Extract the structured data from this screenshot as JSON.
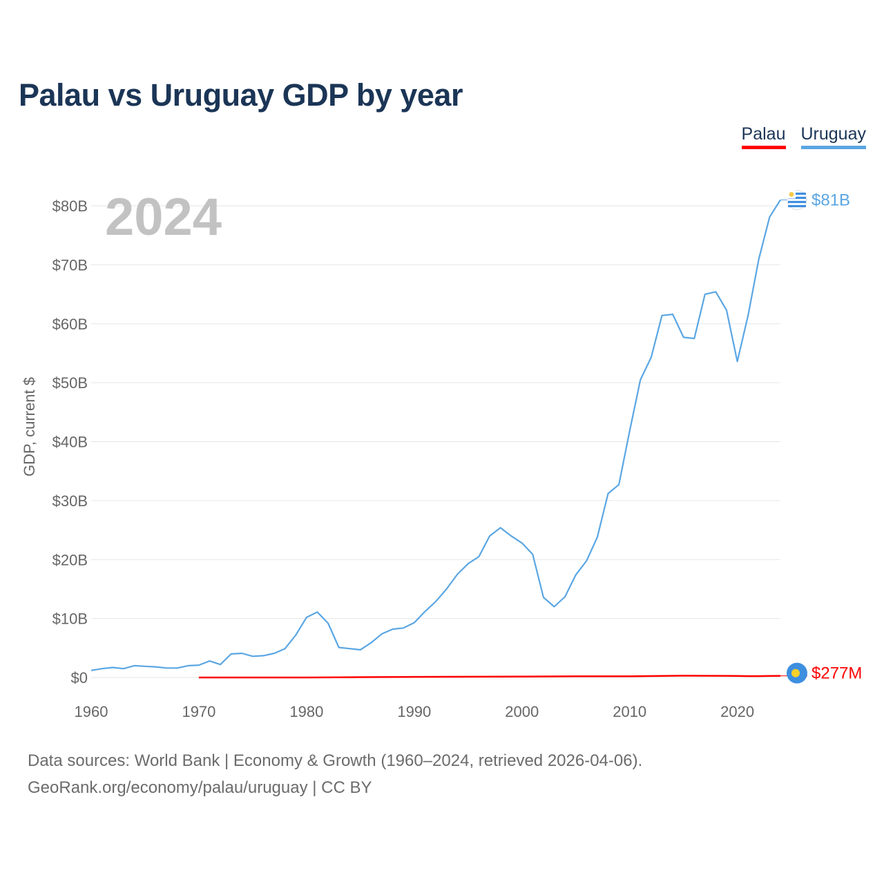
{
  "title": "Palau vs Uruguay GDP by year",
  "legend": [
    {
      "label": "Palau",
      "color": "#ff0000"
    },
    {
      "label": "Uruguay",
      "color": "#5aa6e3"
    }
  ],
  "footer": {
    "line1": "Data sources: World Bank | Economy & Growth (1960–2024, retrieved 2026-04-06).",
    "line2": "GeoRank.org/economy/palau/uruguay | CC BY"
  },
  "chart_data": {
    "type": "line",
    "title": "Palau vs Uruguay GDP by year",
    "xlabel": "",
    "ylabel": "GDP, current $",
    "current_year": "2024",
    "xlim": [
      1960,
      2024
    ],
    "ylim": [
      0,
      80
    ],
    "y_unit": "billions of current US$",
    "x_ticks": [
      "1960",
      "1970",
      "1980",
      "1990",
      "2000",
      "2010",
      "2020"
    ],
    "y_ticks": [
      "$0",
      "$10B",
      "$20B",
      "$30B",
      "$40B",
      "$50B",
      "$60B",
      "$70B",
      "$80B"
    ],
    "y_tick_values": [
      0,
      10,
      20,
      30,
      40,
      50,
      60,
      70,
      80
    ],
    "grid": true,
    "series": [
      {
        "name": "Uruguay",
        "color": "#5aa6e3",
        "end_label": "$81B",
        "x": [
          1960,
          1961,
          1962,
          1963,
          1964,
          1965,
          1966,
          1967,
          1968,
          1969,
          1970,
          1971,
          1972,
          1973,
          1974,
          1975,
          1976,
          1977,
          1978,
          1979,
          1980,
          1981,
          1982,
          1983,
          1984,
          1985,
          1986,
          1987,
          1988,
          1989,
          1990,
          1991,
          1992,
          1993,
          1994,
          1995,
          1996,
          1997,
          1998,
          1999,
          2000,
          2001,
          2002,
          2003,
          2004,
          2005,
          2006,
          2007,
          2008,
          2009,
          2010,
          2011,
          2012,
          2013,
          2014,
          2015,
          2016,
          2017,
          2018,
          2019,
          2020,
          2021,
          2022,
          2023,
          2024
        ],
        "values": [
          1.2,
          1.5,
          1.7,
          1.5,
          2.0,
          1.9,
          1.8,
          1.6,
          1.6,
          2.0,
          2.1,
          2.8,
          2.2,
          4.0,
          4.1,
          3.6,
          3.7,
          4.1,
          4.9,
          7.2,
          10.2,
          11.1,
          9.2,
          5.1,
          4.9,
          4.7,
          5.9,
          7.4,
          8.2,
          8.4,
          9.3,
          11.2,
          12.9,
          15.0,
          17.5,
          19.3,
          20.5,
          24.0,
          25.4,
          24.0,
          22.8,
          20.9,
          13.6,
          12.0,
          13.7,
          17.4,
          19.8,
          23.8,
          31.2,
          32.7,
          41.8,
          50.5,
          54.3,
          61.4,
          61.6,
          57.7,
          57.5,
          65.0,
          65.4,
          62.3,
          53.6,
          61.4,
          71.0,
          78.1,
          81.0
        ]
      },
      {
        "name": "Palau",
        "color": "#ff0000",
        "end_label": "$277M",
        "x": [
          1970,
          1975,
          1980,
          1985,
          1990,
          1995,
          2000,
          2005,
          2010,
          2015,
          2019,
          2020,
          2021,
          2022,
          2023,
          2024
        ],
        "values": [
          0.0,
          0.0,
          0.0,
          0.06,
          0.1,
          0.13,
          0.16,
          0.2,
          0.2,
          0.3,
          0.28,
          0.26,
          0.23,
          0.24,
          0.26,
          0.277
        ]
      }
    ]
  }
}
